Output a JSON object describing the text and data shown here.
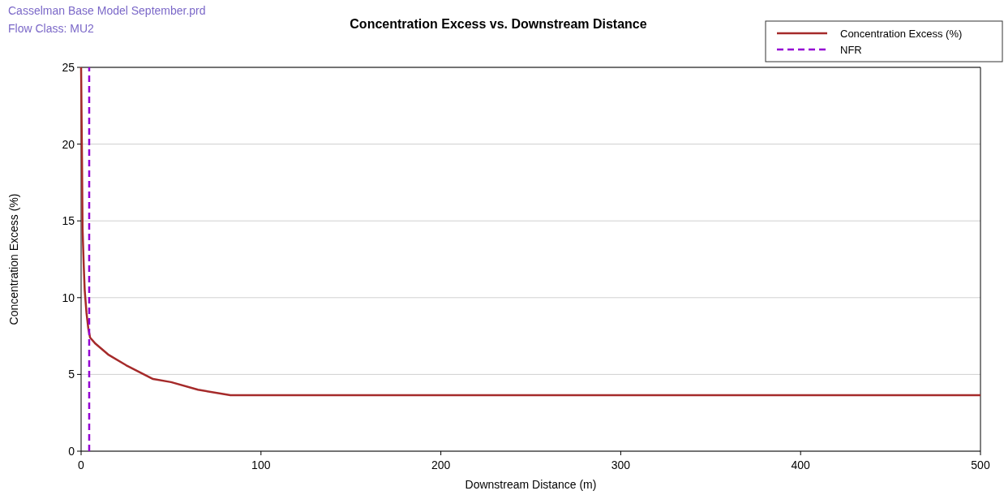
{
  "chart_data": {
    "type": "line",
    "title": "Concentration Excess vs. Downstream Distance",
    "xlabel": "Downstream Distance (m)",
    "ylabel": "Concentration Excess (%)",
    "annotations": [
      "Casselman Base Model September.prd",
      "Flow Class: MU2"
    ],
    "xlim": [
      0,
      500
    ],
    "xticks": [
      0,
      100,
      200,
      300,
      400,
      500
    ],
    "ylim": [
      0,
      25
    ],
    "yticks": [
      0,
      5,
      10,
      15,
      20,
      25
    ],
    "grid": "y",
    "legend": "top right",
    "series": [
      {
        "name": "Concentration Excess (%)",
        "color": "#a52a2a",
        "line_style": "solid",
        "x": [
          0,
          0.5,
          0.8,
          1.5,
          2,
          3,
          4,
          5,
          8,
          15,
          25,
          40,
          50,
          65,
          83,
          500
        ],
        "values": [
          25,
          19,
          14.5,
          12,
          10.5,
          9,
          8,
          7.4,
          7,
          6.3,
          5.6,
          4.7,
          4.5,
          4,
          3.65,
          3.65
        ]
      },
      {
        "name": "NFR",
        "color": "#9400d3",
        "line_style": "dashed",
        "x": [
          4.5,
          4.5
        ],
        "values": [
          0,
          25
        ]
      }
    ]
  }
}
